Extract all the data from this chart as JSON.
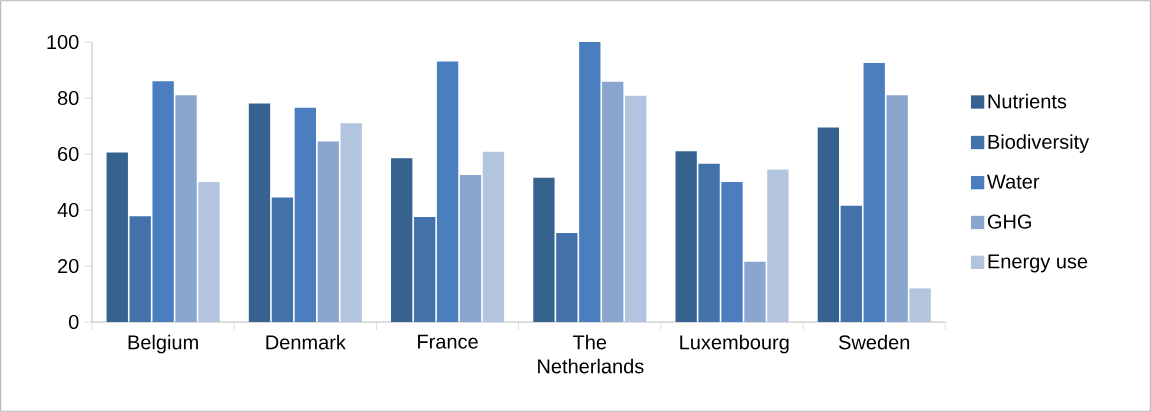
{
  "chart_data": {
    "type": "bar",
    "categories": [
      "Belgium",
      "Denmark",
      "France",
      "The Netherlands",
      "Luxembourg",
      "Sweden"
    ],
    "series": [
      {
        "name": "Nutrients",
        "color": "#35628f",
        "values": [
          60.5,
          78,
          58.5,
          51.5,
          61,
          69.5
        ]
      },
      {
        "name": "Biodiversity",
        "color": "#4272a9",
        "values": [
          37.8,
          44.5,
          37.5,
          31.8,
          56.5,
          41.5
        ]
      },
      {
        "name": "Water",
        "color": "#4a7ebf",
        "values": [
          86,
          76.5,
          93,
          100,
          50,
          92.5
        ]
      },
      {
        "name": "GHG",
        "color": "#8aa6cf",
        "values": [
          81,
          64.5,
          52.5,
          85.8,
          21.5,
          81
        ]
      },
      {
        "name": "Energy use",
        "color": "#b3c4df",
        "values": [
          50,
          71,
          60.8,
          80.8,
          54.5,
          12
        ]
      }
    ],
    "ylim": [
      0,
      100
    ],
    "yticks": [
      0,
      20,
      40,
      60,
      80,
      100
    ],
    "grid": false,
    "legend": "right"
  }
}
